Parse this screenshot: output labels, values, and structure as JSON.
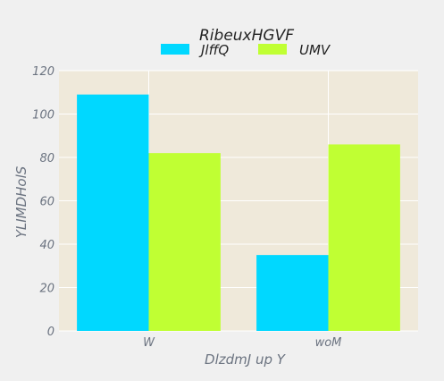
{
  "chart_data": {
    "type": "bar",
    "categories": [
      "W",
      "woM"
    ],
    "series": [
      {
        "name": "JlffQ",
        "values": [
          109,
          35
        ],
        "color": "#00d8ff"
      },
      {
        "name": "UMV",
        "values": [
          82,
          86
        ],
        "color": "#c0ff33"
      }
    ],
    "legend_title": "RibeuxHGVF",
    "xlabel": "DlzdmJ up Y",
    "ylabel": "YLIMDHolS",
    "ylim": [
      0,
      120
    ],
    "yticks": [
      0,
      20,
      40,
      60,
      80,
      100,
      120
    ],
    "grid": true,
    "legend_position": "top-center",
    "plot_background": "#efe9da",
    "grid_color": "#ffffff"
  }
}
